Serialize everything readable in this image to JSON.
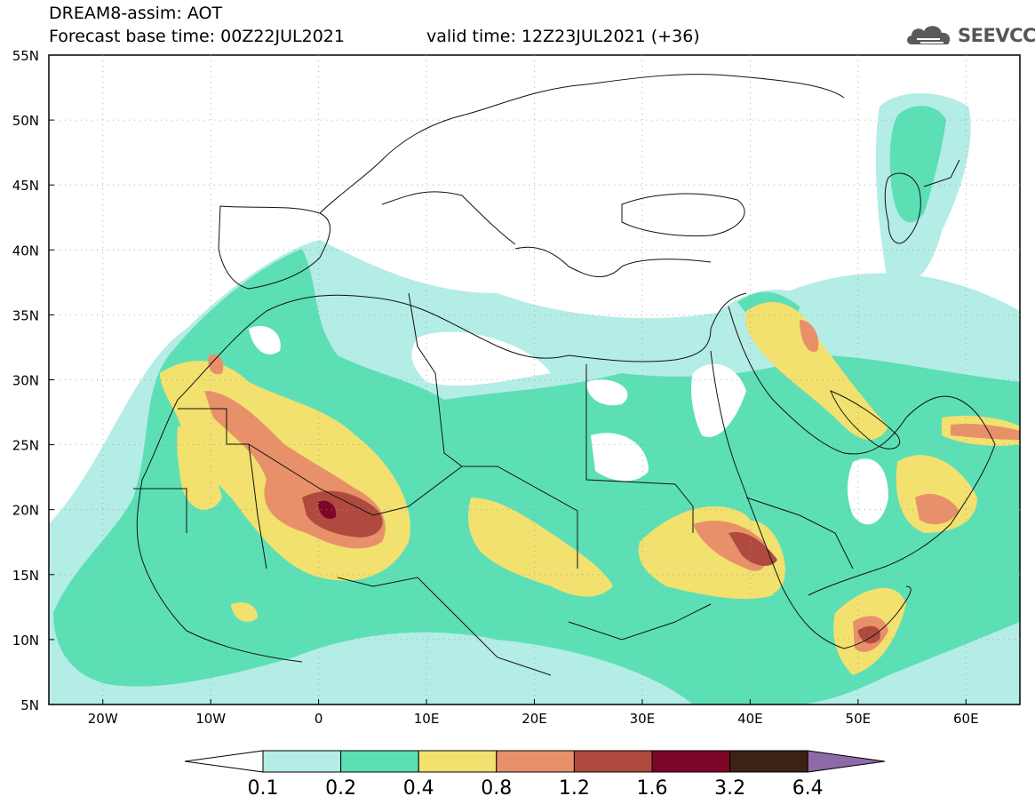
{
  "header": {
    "title": "DREAM8-assim: AOT",
    "base_time": "Forecast base time: 00Z22JUL2021",
    "valid_time": "valid time: 12Z23JUL2021 (+36)"
  },
  "logo": {
    "text": "SEEVCCC",
    "icon": "cloud-icon"
  },
  "map": {
    "lon_range": [
      -25,
      65
    ],
    "lat_range": [
      5,
      55
    ],
    "lat_labels": [
      "55N",
      "50N",
      "45N",
      "40N",
      "35N",
      "30N",
      "25N",
      "20N",
      "15N",
      "10N",
      "5N"
    ],
    "lon_labels": [
      "20W",
      "10W",
      "0",
      "10E",
      "20E",
      "30E",
      "40E",
      "50E",
      "60E"
    ],
    "gridlines": "dotted"
  },
  "colorbar": {
    "levels": [
      "0.1",
      "0.2",
      "0.4",
      "0.8",
      "1.2",
      "1.6",
      "3.2",
      "6.4"
    ],
    "colors": [
      "#ffffff",
      "#b4ece6",
      "#5ddfb6",
      "#f2e06f",
      "#e8906a",
      "#b04a3e",
      "#7d0628",
      "#3b2214",
      "#8e6aa8"
    ]
  }
}
